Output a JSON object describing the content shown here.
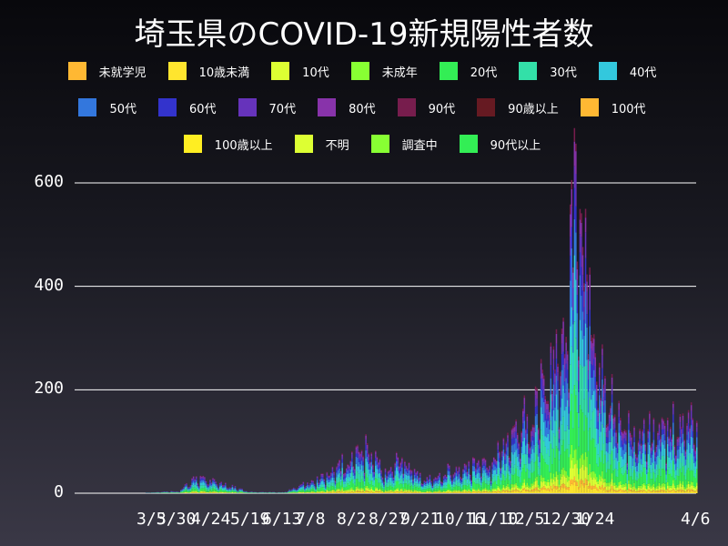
{
  "title": "埼玉県のCOVID-19新規陽性者数",
  "legend": {
    "rows": [
      [
        {
          "label": "未就学児",
          "color": "#FFB833"
        },
        {
          "label": "10歳未満",
          "color": "#FFE52E"
        },
        {
          "label": "10代",
          "color": "#DDFF33"
        },
        {
          "label": "未成年",
          "color": "#88FF33"
        },
        {
          "label": "20代",
          "color": "#33EE55"
        },
        {
          "label": "30代",
          "color": "#33E0A8"
        },
        {
          "label": "40代",
          "color": "#33C8DD"
        }
      ],
      [
        {
          "label": "50代",
          "color": "#3377DD"
        },
        {
          "label": "60代",
          "color": "#3333CC"
        },
        {
          "label": "70代",
          "color": "#6633BB"
        },
        {
          "label": "80代",
          "color": "#8833AA"
        },
        {
          "label": "90代",
          "color": "#771D4D"
        },
        {
          "label": "90歳以上",
          "color": "#661A22"
        },
        {
          "label": "100代",
          "color": "#FFB833"
        }
      ],
      [
        {
          "label": "100歳以上",
          "color": "#FFEE22"
        },
        {
          "label": "不明",
          "color": "#DDFF33"
        },
        {
          "label": "調査中",
          "color": "#88FF33"
        },
        {
          "label": "90代以上",
          "color": "#33EE55"
        }
      ]
    ]
  },
  "chart_data": {
    "type": "bar",
    "title": "埼玉県のCOVID-19新規陽性者数",
    "xlabel": "",
    "ylabel": "",
    "stacked": true,
    "ylim": [
      0,
      700
    ],
    "yticks": [
      0,
      200,
      400,
      600
    ],
    "xtick_labels": [
      "3/5",
      "3/30",
      "4/24",
      "5/19",
      "6/13",
      "7/8",
      "8/2",
      "8/27",
      "9/21",
      "10/16",
      "11/10",
      "12/5",
      "12/30",
      "1/24",
      "4/6"
    ],
    "grid": true,
    "legend_position": "top",
    "period": "2020-01 to 2021-04-06 (daily)",
    "series_order": [
      "未就学児",
      "10歳未満",
      "10代",
      "未成年",
      "20代",
      "30代",
      "40代",
      "50代",
      "60代",
      "70代",
      "80代",
      "90代",
      "90歳以上",
      "100代",
      "100歳以上",
      "不明",
      "調査中",
      "90代以上"
    ],
    "daily_totals_approx": {
      "description": "Approximate daily total cases (sum of stacked series), sampled along time axis",
      "points": [
        {
          "date": "2020-03-05",
          "total": 1
        },
        {
          "date": "2020-03-30",
          "total": 5
        },
        {
          "date": "2020-04-10",
          "total": 30
        },
        {
          "date": "2020-04-24",
          "total": 25
        },
        {
          "date": "2020-05-19",
          "total": 3
        },
        {
          "date": "2020-06-13",
          "total": 2
        },
        {
          "date": "2020-07-08",
          "total": 30
        },
        {
          "date": "2020-07-25",
          "total": 60
        },
        {
          "date": "2020-08-02",
          "total": 70
        },
        {
          "date": "2020-08-10",
          "total": 90
        },
        {
          "date": "2020-08-27",
          "total": 40
        },
        {
          "date": "2020-09-05",
          "total": 75
        },
        {
          "date": "2020-09-21",
          "total": 25
        },
        {
          "date": "2020-10-16",
          "total": 50
        },
        {
          "date": "2020-11-10",
          "total": 60
        },
        {
          "date": "2020-11-20",
          "total": 110
        },
        {
          "date": "2020-12-05",
          "total": 150
        },
        {
          "date": "2020-12-20",
          "total": 230
        },
        {
          "date": "2020-12-30",
          "total": 280
        },
        {
          "date": "2021-01-08",
          "total": 600
        },
        {
          "date": "2021-01-14",
          "total": 540
        },
        {
          "date": "2021-01-24",
          "total": 260
        },
        {
          "date": "2021-02-05",
          "total": 180
        },
        {
          "date": "2021-02-20",
          "total": 110
        },
        {
          "date": "2021-03-05",
          "total": 120
        },
        {
          "date": "2021-03-20",
          "total": 140
        },
        {
          "date": "2021-04-06",
          "total": 150
        }
      ],
      "peak": {
        "date": "2021-01-08",
        "total": 605
      }
    }
  }
}
